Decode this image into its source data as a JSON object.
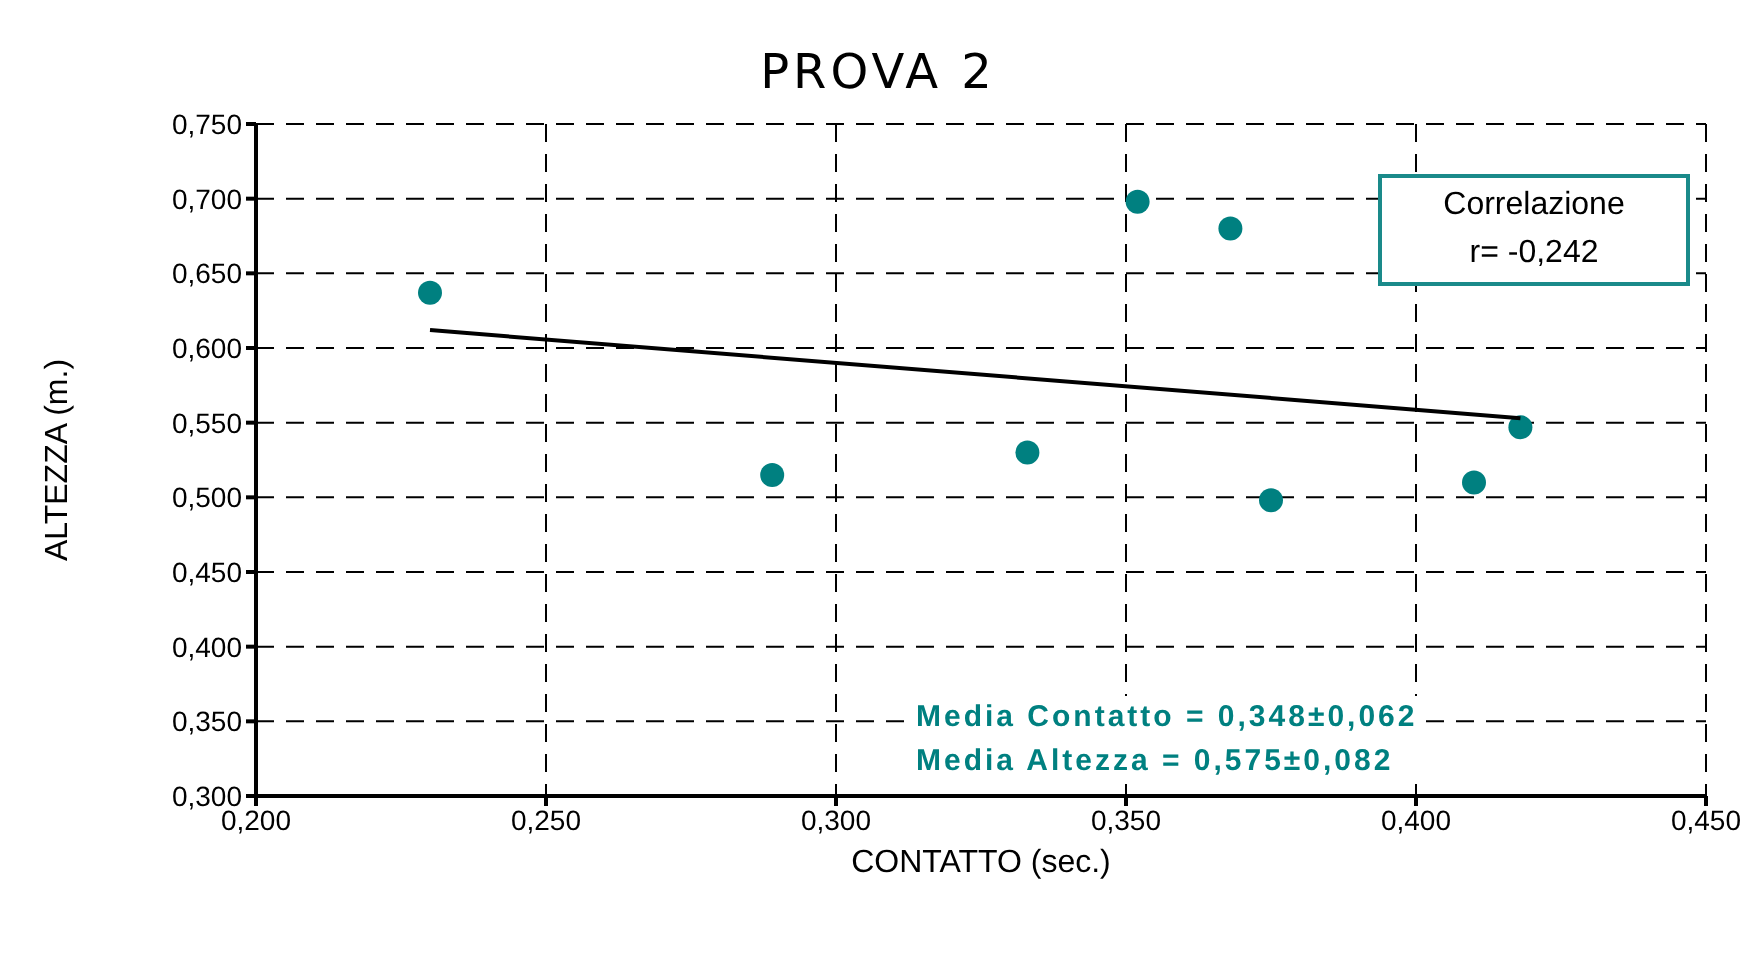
{
  "chart_data": {
    "type": "scatter",
    "title": "PROVA 2",
    "xlabel": "CONTATTO (sec.)",
    "ylabel": "ALTEZZA (m.)",
    "series": [
      {
        "type": "scatter",
        "color": "#008080",
        "marker": "circle",
        "x": [
          0.23,
          0.289,
          0.333,
          0.352,
          0.368,
          0.375,
          0.41,
          0.418
        ],
        "values": [
          0.637,
          0.515,
          0.53,
          0.698,
          0.68,
          0.498,
          0.51,
          0.547
        ]
      },
      {
        "type": "line",
        "color": "#000000",
        "marker": "none",
        "line_style": "solid",
        "x": [
          0.23,
          0.418
        ],
        "values": [
          0.612,
          0.553
        ]
      }
    ],
    "xlim": [
      0.2,
      0.45
    ],
    "xticks": [
      {
        "value": 0.2,
        "label": "0,200"
      },
      {
        "value": 0.25,
        "label": "0,250"
      },
      {
        "value": 0.3,
        "label": "0,300"
      },
      {
        "value": 0.35,
        "label": "0,350"
      },
      {
        "value": 0.4,
        "label": "0,400"
      },
      {
        "value": 0.45,
        "label": "0,450"
      }
    ],
    "ylim": [
      0.3,
      0.75
    ],
    "yticks": [
      {
        "value": 0.3,
        "label": "0,300"
      },
      {
        "value": 0.35,
        "label": "0,350"
      },
      {
        "value": 0.4,
        "label": "0,400"
      },
      {
        "value": 0.45,
        "label": "0,450"
      },
      {
        "value": 0.5,
        "label": "0,500"
      },
      {
        "value": 0.55,
        "label": "0,550"
      },
      {
        "value": 0.6,
        "label": "0,600"
      },
      {
        "value": 0.65,
        "label": "0,650"
      },
      {
        "value": 0.7,
        "label": "0,700"
      },
      {
        "value": 0.75,
        "label": "0,750"
      }
    ],
    "grid": true,
    "annotations": [
      "Correlazione",
      "r= -0,242",
      "Media Contatto = 0,348±0,062",
      "Media Altezza = 0,575±0,082"
    ]
  }
}
